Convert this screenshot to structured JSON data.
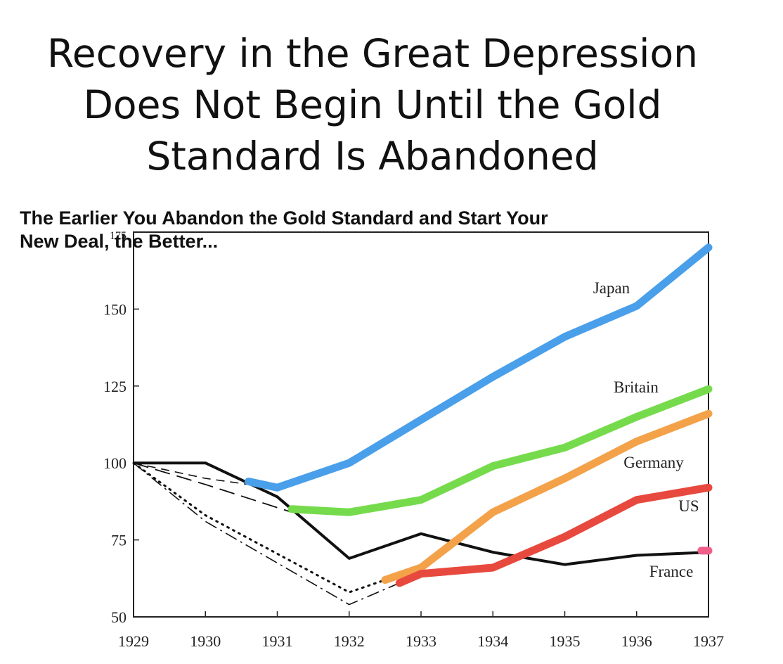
{
  "slide": {
    "title_lines": [
      "Recovery in the Great Depression",
      "Does Not Begin Until the Gold",
      "Standard Is Abandoned"
    ]
  },
  "chart_data": {
    "type": "line",
    "subtitle_lines": [
      "The Earlier You Abandon the Gold Standard and Start Your",
      "New Deal, the Better..."
    ],
    "xlabel": "",
    "ylabel": "",
    "x_ticks": [
      "1929",
      "1930",
      "1931",
      "1932",
      "1933",
      "1934",
      "1935",
      "1936",
      "1937"
    ],
    "y_ticks": [
      "50",
      "75",
      "100",
      "125",
      "150",
      "175"
    ],
    "xlim": [
      1929,
      1937
    ],
    "ylim": [
      50,
      175
    ],
    "grid": false,
    "legend": "inline labels at line ends",
    "background_series": [
      {
        "name": "France",
        "style": "solid",
        "points": [
          [
            1929,
            100
          ],
          [
            1930,
            100
          ],
          [
            1931,
            89
          ],
          [
            1932,
            69
          ],
          [
            1933,
            77
          ],
          [
            1934,
            71
          ],
          [
            1935,
            67
          ],
          [
            1936,
            70
          ],
          [
            1937,
            71
          ]
        ]
      },
      {
        "style": "dashed",
        "points": [
          [
            1929,
            100
          ],
          [
            1930,
            95
          ],
          [
            1930.6,
            93
          ]
        ]
      },
      {
        "style": "longdash",
        "points": [
          [
            1929,
            100
          ],
          [
            1930,
            93
          ],
          [
            1931.2,
            84
          ]
        ]
      },
      {
        "style": "dotted",
        "points": [
          [
            1929,
            100
          ],
          [
            1930,
            83
          ],
          [
            1932,
            58
          ],
          [
            1932.5,
            62
          ]
        ]
      },
      {
        "style": "dashdot",
        "points": [
          [
            1929,
            100
          ],
          [
            1930,
            81
          ],
          [
            1932,
            54
          ],
          [
            1932.7,
            61
          ]
        ]
      }
    ],
    "series": [
      {
        "name": "Japan",
        "color": "#4a9fea",
        "points": [
          [
            1930.6,
            94
          ],
          [
            1931,
            92
          ],
          [
            1932,
            100
          ],
          [
            1933,
            114
          ],
          [
            1934,
            128
          ],
          [
            1935,
            141
          ],
          [
            1936,
            151
          ],
          [
            1937,
            170
          ]
        ]
      },
      {
        "name": "Britain",
        "color": "#76db4c",
        "points": [
          [
            1931.2,
            85
          ],
          [
            1932,
            84
          ],
          [
            1933,
            88
          ],
          [
            1934,
            99
          ],
          [
            1935,
            105
          ],
          [
            1936,
            115
          ],
          [
            1937,
            124
          ]
        ]
      },
      {
        "name": "Germany",
        "color": "#f3a24a",
        "points": [
          [
            1932.5,
            62
          ],
          [
            1933,
            66
          ],
          [
            1934,
            84
          ],
          [
            1935,
            95
          ],
          [
            1936,
            107
          ],
          [
            1937,
            116
          ]
        ]
      },
      {
        "name": "US",
        "color": "#e8493e",
        "points": [
          [
            1932.7,
            61
          ],
          [
            1933,
            64
          ],
          [
            1934,
            66
          ],
          [
            1935,
            76
          ],
          [
            1936,
            88
          ],
          [
            1937,
            92
          ]
        ]
      },
      {
        "name": "France",
        "color": "#f05e8a",
        "points": [
          [
            1936.9,
            71.5
          ],
          [
            1937,
            71.5
          ]
        ]
      }
    ]
  }
}
